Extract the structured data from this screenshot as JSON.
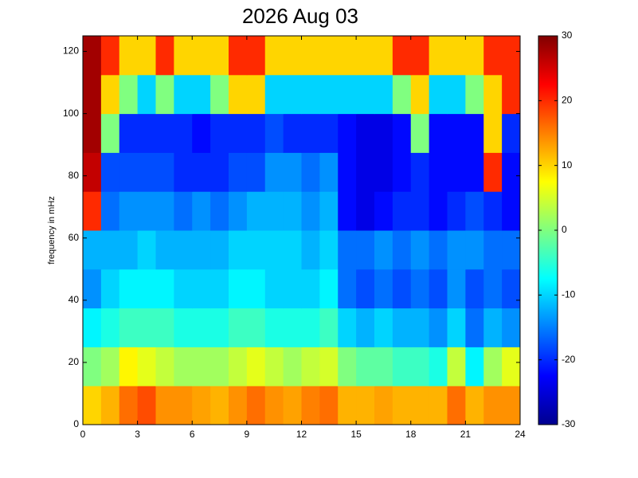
{
  "chart_data": {
    "type": "heatmap",
    "title": "2026 Aug 03",
    "y_label": "frequency in mHz",
    "colormap": "jet",
    "x_bins": [
      0,
      1,
      2,
      3,
      4,
      5,
      6,
      7,
      8,
      9,
      10,
      11,
      12,
      13,
      14,
      15,
      16,
      17,
      18,
      19,
      20,
      21,
      22,
      23,
      24
    ],
    "y_bins": [
      0,
      12.5,
      25,
      37.5,
      50,
      62.5,
      75,
      87.5,
      100,
      112.5,
      125
    ],
    "values": [
      [
        10,
        12,
        16,
        18,
        14,
        14,
        13,
        12,
        14,
        16,
        14,
        13,
        15,
        16,
        12,
        12,
        13,
        12,
        12,
        12,
        16,
        12,
        14,
        14
      ],
      [
        0,
        2,
        8,
        6,
        4,
        2,
        2,
        2,
        4,
        6,
        4,
        2,
        4,
        5,
        0,
        -2,
        -2,
        -4,
        -4,
        -6,
        4,
        -8,
        2,
        6
      ],
      [
        -8,
        -6,
        -4,
        -4,
        -4,
        -6,
        -6,
        -6,
        -4,
        -4,
        -6,
        -6,
        -6,
        -4,
        -10,
        -12,
        -10,
        -12,
        -12,
        -14,
        -10,
        -16,
        -12,
        -14
      ],
      [
        -14,
        -10,
        -8,
        -8,
        -8,
        -10,
        -10,
        -10,
        -8,
        -8,
        -10,
        -10,
        -10,
        -8,
        -16,
        -18,
        -16,
        -18,
        -16,
        -18,
        -14,
        -18,
        -16,
        -18
      ],
      [
        -12,
        -12,
        -12,
        -10,
        -12,
        -12,
        -12,
        -12,
        -10,
        -10,
        -10,
        -10,
        -12,
        -10,
        -16,
        -16,
        -14,
        -16,
        -14,
        -16,
        -14,
        -14,
        -16,
        -16
      ],
      [
        20,
        -16,
        -14,
        -14,
        -14,
        -16,
        -14,
        -16,
        -14,
        -12,
        -12,
        -12,
        -14,
        -12,
        -22,
        -24,
        -22,
        -20,
        -20,
        -22,
        -20,
        -18,
        -20,
        -22
      ],
      [
        26,
        -18,
        -18,
        -18,
        -18,
        -20,
        -20,
        -20,
        -18,
        -18,
        -14,
        -14,
        -16,
        -14,
        -22,
        -24,
        -24,
        -22,
        -20,
        -22,
        -22,
        -22,
        20,
        -22
      ],
      [
        28,
        0,
        -20,
        -20,
        -20,
        -20,
        -22,
        -20,
        -20,
        -20,
        -18,
        -20,
        -20,
        -20,
        -22,
        -24,
        -24,
        -22,
        0,
        -22,
        -22,
        -22,
        10,
        -20
      ],
      [
        28,
        10,
        0,
        -10,
        0,
        -10,
        -10,
        0,
        10,
        10,
        -10,
        -10,
        -10,
        -10,
        -10,
        -10,
        -10,
        0,
        10,
        -10,
        -10,
        0,
        10,
        20
      ],
      [
        28,
        20,
        10,
        10,
        20,
        10,
        10,
        10,
        20,
        20,
        10,
        10,
        10,
        10,
        10,
        10,
        10,
        20,
        20,
        10,
        10,
        10,
        20,
        20
      ]
    ],
    "xlim": [
      0,
      24
    ],
    "xticks": [
      0,
      3,
      6,
      9,
      12,
      15,
      18,
      21,
      24
    ],
    "ylim": [
      0,
      125
    ],
    "yticks": [
      0,
      20,
      40,
      60,
      80,
      100,
      120
    ],
    "clim": [
      -30,
      30
    ],
    "cticks": [
      -30,
      -20,
      -10,
      0,
      10,
      20,
      30
    ]
  }
}
